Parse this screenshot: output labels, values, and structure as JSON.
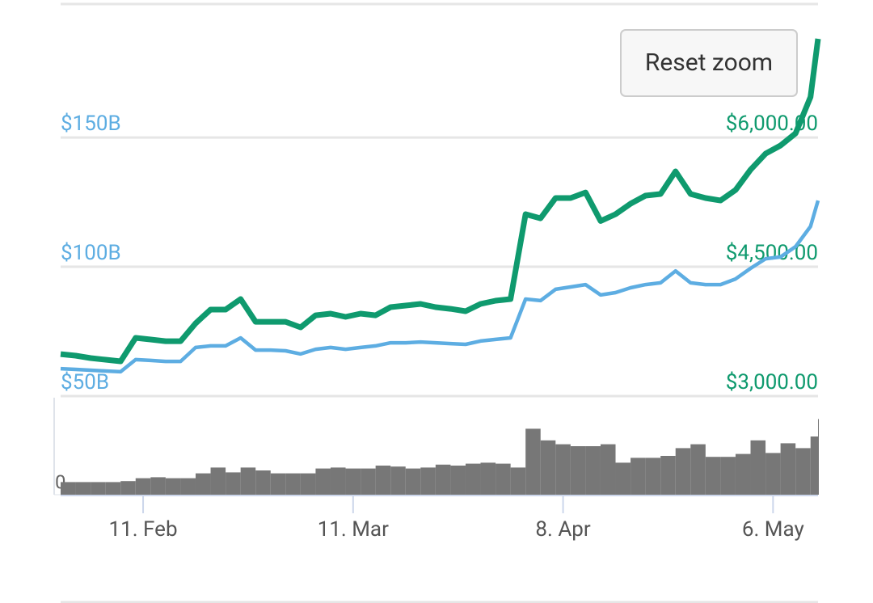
{
  "chart_data": [
    {
      "type": "line",
      "button": "Reset zoom",
      "x": [
        31,
        33,
        35,
        37,
        39,
        41,
        43,
        45,
        47,
        49,
        51,
        53,
        55,
        57,
        59,
        61,
        63,
        65,
        67,
        69,
        71,
        73,
        75,
        77,
        79,
        81,
        83,
        85,
        87,
        89,
        91,
        93,
        95,
        97,
        99,
        101,
        103,
        105,
        107,
        109,
        111,
        113,
        115,
        117,
        119,
        121,
        123,
        125,
        127,
        129,
        131,
        132
      ],
      "xlim": [
        31,
        132
      ],
      "ylim": [
        50,
        201.6
      ],
      "yticks": [
        {
          "value": 50,
          "label": "$50B"
        },
        {
          "value": 100,
          "label": "$100B"
        },
        {
          "value": 150,
          "label": "$150B"
        }
      ],
      "y2lim": [
        3000,
        7547
      ],
      "y2ticks": [
        {
          "value": 3000,
          "label": "$3,000.00"
        },
        {
          "value": 4500,
          "label": "$4,500.00"
        },
        {
          "value": 6000,
          "label": "$6,000.00"
        }
      ],
      "grid": true,
      "series": [
        {
          "color": "#5dade2",
          "values": [
            60.6,
            60.3,
            60,
            59.7,
            59.4,
            64.1,
            63.8,
            63.4,
            63.4,
            68.8,
            69.4,
            69.4,
            72.5,
            67.8,
            67.8,
            67.5,
            66.3,
            68.1,
            68.8,
            68.1,
            68.8,
            69.4,
            70.6,
            70.6,
            70.9,
            70.6,
            70.3,
            70,
            71.3,
            71.9,
            72.5,
            87.5,
            86.9,
            91.3,
            92.2,
            93.1,
            89.1,
            90,
            91.9,
            93.1,
            93.8,
            98.4,
            93.8,
            93.1,
            93.1,
            95.3,
            99.4,
            103.1,
            103.8,
            107.8,
            115.6,
            125.6
          ]
        },
        {
          "color": "#0f9a6e",
          "axis": "y2",
          "values": [
            3487,
            3469,
            3441,
            3422,
            3403,
            3675,
            3656,
            3637,
            3637,
            3844,
            4003,
            4003,
            4125,
            3862,
            3862,
            3862,
            3797,
            3937,
            3956,
            3919,
            3956,
            3937,
            4031,
            4050,
            4069,
            4031,
            4012,
            3984,
            4069,
            4106,
            4125,
            5109,
            5062,
            5297,
            5297,
            5362,
            5031,
            5109,
            5231,
            5325,
            5344,
            5606,
            5344,
            5297,
            5269,
            5391,
            5625,
            5812,
            5906,
            6047,
            6469,
            7144
          ]
        }
      ]
    },
    {
      "type": "bar",
      "x": [
        31,
        33,
        35,
        37,
        39,
        41,
        43,
        45,
        47,
        49,
        51,
        53,
        55,
        57,
        59,
        61,
        63,
        65,
        67,
        69,
        71,
        73,
        75,
        77,
        79,
        81,
        83,
        85,
        87,
        89,
        91,
        93,
        95,
        97,
        99,
        101,
        103,
        105,
        107,
        109,
        111,
        113,
        115,
        117,
        119,
        121,
        123,
        125,
        127,
        129,
        131,
        132
      ],
      "values": [
        13,
        13,
        13,
        13,
        14,
        17,
        18,
        17,
        17,
        22,
        28,
        23,
        28,
        25,
        22,
        22,
        22,
        27,
        28,
        27,
        27,
        30,
        29,
        27,
        28,
        31,
        30,
        32,
        33,
        32,
        28,
        68,
        56,
        52,
        50,
        50,
        52,
        33,
        38,
        38,
        40,
        48,
        52,
        39,
        39,
        42,
        56,
        43,
        53,
        48,
        60,
        78
      ],
      "color": "#777777",
      "xlim": [
        31,
        132
      ],
      "xticks": [
        {
          "value": 42,
          "label": "11. Feb"
        },
        {
          "value": 70,
          "label": "11. Mar"
        },
        {
          "value": 98,
          "label": "8. Apr"
        },
        {
          "value": 126,
          "label": "6. May"
        }
      ],
      "ylim": [
        0,
        100
      ],
      "yticks": [
        0
      ]
    }
  ]
}
